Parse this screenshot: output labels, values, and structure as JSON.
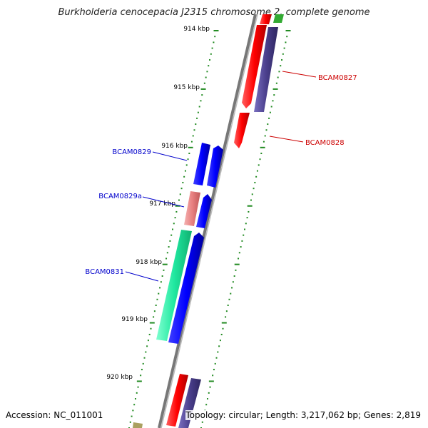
{
  "title": "Burkholderia cenocepacia J2315 chromosome 2, complete genome",
  "accession": "Accession: NC_011001",
  "topology": "Topology: circular; Length: 3,217,062 bp; Genes: 2,819",
  "ticks": [
    "914 kbp",
    "915 kbp",
    "916 kbp",
    "917 kbp",
    "918 kbp",
    "919 kbp",
    "920 kbp"
  ],
  "gene_labels": {
    "BCAM0827": "BCAM0827",
    "BCAM0828": "BCAM0828",
    "BCAM0829": "BCAM0829",
    "BCAM0829a": "BCAM0829a",
    "BCAM0831": "BCAM0831"
  },
  "colors": {
    "forward_gene": "#ff0000",
    "reverse_gene": "#0000ff",
    "purple_gene": "#4a3f8c",
    "pink_gene": "#e88080",
    "teal_gene": "#20e8a0",
    "green_gene": "#33aa33",
    "olive_gene": "#aaa060",
    "tick": "#228b22",
    "backbone": "#777777",
    "label_red": "#cc0000",
    "label_blue": "#0000cc"
  }
}
